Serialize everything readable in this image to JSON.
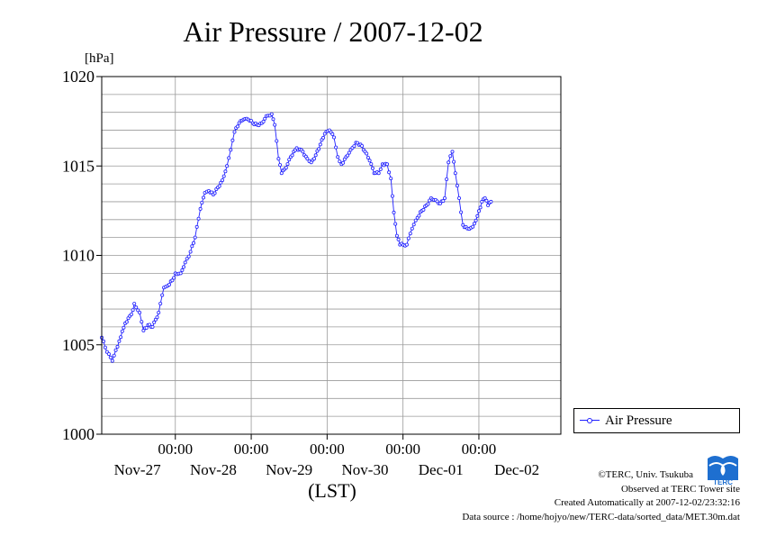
{
  "chart_data": {
    "type": "line",
    "title": "Air Pressure / 2007-12-02",
    "unit_label": "[hPa]",
    "xlabel": "(LST)",
    "ylim": [
      1000,
      1020
    ],
    "yticks": [
      1000,
      1005,
      1010,
      1015,
      1020
    ],
    "ytick_labels": [
      "1000",
      "1005",
      "1010",
      "1015",
      "1020"
    ],
    "x_range_days": [
      -0.97,
      5.08
    ],
    "time_tick_label": "00:00",
    "date_labels": [
      "Nov-27",
      "Nov-28",
      "Nov-29",
      "Nov-30",
      "Dec-01",
      "Dec-02"
    ],
    "grid": true,
    "legend_position": "right",
    "series": [
      {
        "name": "Air Pressure",
        "color": "#2020ff",
        "keypoints": [
          [
            -0.97,
            1005.4
          ],
          [
            -0.9,
            1004.6
          ],
          [
            -0.83,
            1004.1
          ],
          [
            -0.74,
            1005.2
          ],
          [
            -0.66,
            1006.2
          ],
          [
            -0.58,
            1006.7
          ],
          [
            -0.54,
            1007.3
          ],
          [
            -0.47,
            1006.8
          ],
          [
            -0.42,
            1005.8
          ],
          [
            -0.36,
            1006.1
          ],
          [
            -0.3,
            1006.0
          ],
          [
            -0.22,
            1006.8
          ],
          [
            -0.15,
            1008.2
          ],
          [
            -0.1,
            1008.3
          ],
          [
            -0.04,
            1008.6
          ],
          [
            0.0,
            1009.0
          ],
          [
            0.07,
            1009.0
          ],
          [
            0.13,
            1009.6
          ],
          [
            0.2,
            1010.2
          ],
          [
            0.26,
            1011.0
          ],
          [
            0.33,
            1012.6
          ],
          [
            0.39,
            1013.5
          ],
          [
            0.44,
            1013.6
          ],
          [
            0.5,
            1013.4
          ],
          [
            0.56,
            1013.8
          ],
          [
            0.62,
            1014.2
          ],
          [
            0.68,
            1015.0
          ],
          [
            0.73,
            1015.9
          ],
          [
            0.78,
            1016.9
          ],
          [
            0.84,
            1017.4
          ],
          [
            0.9,
            1017.6
          ],
          [
            0.96,
            1017.6
          ],
          [
            1.02,
            1017.4
          ],
          [
            1.08,
            1017.3
          ],
          [
            1.14,
            1017.4
          ],
          [
            1.2,
            1017.8
          ],
          [
            1.27,
            1017.9
          ],
          [
            1.31,
            1017.3
          ],
          [
            1.36,
            1015.4
          ],
          [
            1.4,
            1014.6
          ],
          [
            1.46,
            1014.9
          ],
          [
            1.52,
            1015.5
          ],
          [
            1.6,
            1016.0
          ],
          [
            1.68,
            1015.8
          ],
          [
            1.74,
            1015.4
          ],
          [
            1.79,
            1015.2
          ],
          [
            1.85,
            1015.6
          ],
          [
            1.91,
            1016.2
          ],
          [
            1.97,
            1016.8
          ],
          [
            2.03,
            1017.0
          ],
          [
            2.09,
            1016.6
          ],
          [
            2.14,
            1015.5
          ],
          [
            2.19,
            1015.1
          ],
          [
            2.25,
            1015.5
          ],
          [
            2.31,
            1015.9
          ],
          [
            2.38,
            1016.3
          ],
          [
            2.44,
            1016.2
          ],
          [
            2.5,
            1015.8
          ],
          [
            2.56,
            1015.3
          ],
          [
            2.62,
            1014.6
          ],
          [
            2.68,
            1014.6
          ],
          [
            2.73,
            1015.1
          ],
          [
            2.79,
            1015.1
          ],
          [
            2.84,
            1014.3
          ],
          [
            2.88,
            1012.4
          ],
          [
            2.92,
            1011.1
          ],
          [
            2.96,
            1010.6
          ],
          [
            3.05,
            1010.6
          ],
          [
            3.12,
            1011.5
          ],
          [
            3.19,
            1012.1
          ],
          [
            3.25,
            1012.5
          ],
          [
            3.31,
            1012.8
          ],
          [
            3.37,
            1013.2
          ],
          [
            3.43,
            1013.1
          ],
          [
            3.49,
            1012.9
          ],
          [
            3.55,
            1013.2
          ],
          [
            3.6,
            1015.2
          ],
          [
            3.65,
            1015.8
          ],
          [
            3.69,
            1014.6
          ],
          [
            3.74,
            1013.2
          ],
          [
            3.79,
            1011.7
          ],
          [
            3.85,
            1011.5
          ],
          [
            3.92,
            1011.6
          ],
          [
            3.98,
            1012.2
          ],
          [
            4.04,
            1013.0
          ],
          [
            4.08,
            1013.2
          ],
          [
            4.12,
            1012.8
          ],
          [
            4.16,
            1013.0
          ]
        ]
      }
    ]
  },
  "legend": {
    "label": "Air Pressure"
  },
  "credits": {
    "copyright": "©TERC, Univ. Tsukuba",
    "observed": "Observed at TERC Tower site",
    "created": "Created Automatically at 2007-12-02/23:32:16",
    "source": "Data source : /home/hojyo/new/TERC-data/sorted_data/MET.30m.dat"
  },
  "logo": {
    "text": "TERC",
    "color": "#1e6fd0"
  }
}
